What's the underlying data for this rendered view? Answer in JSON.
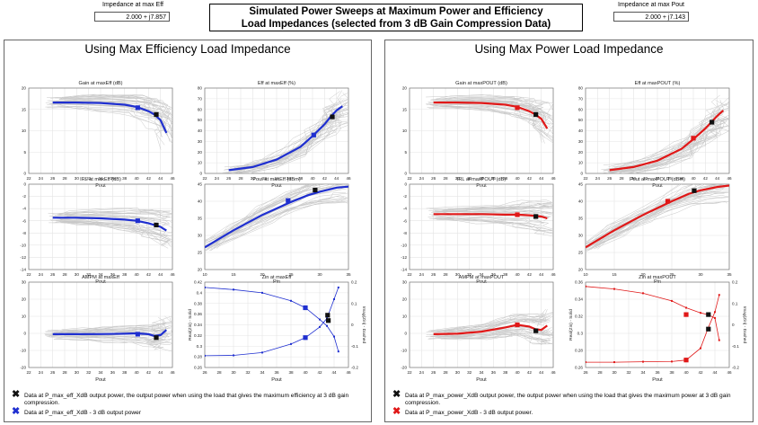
{
  "header": {
    "title_line1": "Simulated Power Sweeps at Maximum Power and Efficiency",
    "title_line2": "Load Impedances (selected from 3 dB Gain Compression Data)",
    "left_impedance_label": "Impedance at max Eff",
    "left_impedance_value": "2.000 + j7.857",
    "right_impedance_label": "Impedance at max Pout",
    "right_impedance_value": "2.000 + j7.143"
  },
  "colors": {
    "eff_series": "#1f2fd0",
    "pout_series": "#e01818",
    "background_curves": "#c8c8c8",
    "marker_black": "#111111"
  },
  "panels": [
    {
      "title": "Using Max Efficiency Load Impedance",
      "accent": "#1f2fd0",
      "legend": [
        {
          "marker": "✖",
          "color": "#111111",
          "text": "Data at P_max_eff_XdB output power, the output power when using the load that gives the maximum efficiency at 3 dB gain compression."
        },
        {
          "marker": "✖",
          "color": "#1f2fd0",
          "text": "Data at P_max_eff_XdB - 3 dB output power"
        }
      ]
    },
    {
      "title": "Using Max Power Load Impedance",
      "accent": "#e01818",
      "legend": [
        {
          "marker": "✖",
          "color": "#111111",
          "text": "Data at P_max_power_XdB output power, the output power when using the load that gives the maximum power at 3 dB gain compression."
        },
        {
          "marker": "✖",
          "color": "#e01818",
          "text": "Data at P_max_power_XdB - 3 dB output power."
        }
      ]
    }
  ],
  "chart_data": [
    {
      "panel": 0,
      "type": "line",
      "title": "Gain at maxEff (dB)",
      "xlabel": "Pout",
      "ylabel": "",
      "xlim": [
        22,
        46
      ],
      "ylim": [
        0,
        20
      ],
      "xticks": [
        22,
        24,
        26,
        28,
        30,
        32,
        34,
        36,
        38,
        40,
        42,
        44,
        46
      ],
      "yticks": [
        0,
        5,
        10,
        15,
        20
      ],
      "x": [
        26,
        30,
        34,
        38,
        40,
        42,
        43,
        44,
        45
      ],
      "y": [
        16.6,
        16.6,
        16.5,
        16.1,
        15.6,
        14.6,
        13.8,
        12.5,
        9.5
      ],
      "markers": [
        {
          "x": 40.2,
          "y": 15.4,
          "color": "accent"
        },
        {
          "x": 43.3,
          "y": 13.8,
          "color": "black"
        }
      ]
    },
    {
      "panel": 0,
      "type": "line",
      "title": "Eff at maxEff (%)",
      "xlabel": "Pout",
      "ylabel": "",
      "xlim": [
        22,
        46
      ],
      "ylim": [
        0,
        80
      ],
      "xticks": [
        22,
        24,
        26,
        28,
        30,
        32,
        34,
        36,
        38,
        40,
        42,
        44,
        46
      ],
      "yticks": [
        0,
        10,
        20,
        30,
        40,
        50,
        60,
        70,
        80
      ],
      "x": [
        26,
        30,
        34,
        38,
        40,
        42,
        43,
        44,
        45
      ],
      "y": [
        3,
        6,
        13,
        25,
        35,
        46,
        53,
        59,
        63
      ],
      "markers": [
        {
          "x": 40.2,
          "y": 36,
          "color": "accent"
        },
        {
          "x": 43.3,
          "y": 53,
          "color": "black"
        }
      ]
    },
    {
      "panel": 0,
      "type": "line",
      "title": "IRL at maxEff (dB)",
      "xlabel": "Pout",
      "ylabel": "",
      "xlim": [
        22,
        46
      ],
      "ylim": [
        -14,
        0
      ],
      "xticks": [
        22,
        24,
        26,
        28,
        30,
        32,
        34,
        36,
        38,
        40,
        42,
        44,
        46
      ],
      "yticks": [
        0,
        -2,
        -4,
        -6,
        -8,
        -10,
        -12,
        -14
      ],
      "x": [
        26,
        30,
        34,
        38,
        40,
        42,
        44,
        45
      ],
      "y": [
        -5.5,
        -5.5,
        -5.6,
        -5.8,
        -6.0,
        -6.4,
        -7.0,
        -7.6
      ],
      "markers": [
        {
          "x": 40.2,
          "y": -6.0,
          "color": "accent"
        },
        {
          "x": 43.3,
          "y": -6.7,
          "color": "black"
        }
      ]
    },
    {
      "panel": 0,
      "type": "line",
      "title": "Pout at maxEff (dBm)",
      "xlabel": "Pin",
      "ylabel": "",
      "xlim": [
        10,
        35
      ],
      "ylim": [
        20,
        45
      ],
      "xticks": [
        10,
        15,
        20,
        25,
        30,
        35
      ],
      "yticks": [
        20,
        25,
        30,
        35,
        40,
        45
      ],
      "x": [
        10,
        15,
        20,
        25,
        28,
        30,
        33,
        35
      ],
      "y": [
        26.5,
        31.5,
        36,
        39.8,
        41.8,
        42.8,
        44,
        44.3
      ],
      "markers": [
        {
          "x": 24.5,
          "y": 40.2,
          "color": "accent"
        },
        {
          "x": 29.2,
          "y": 43.3,
          "color": "black"
        }
      ]
    },
    {
      "panel": 0,
      "type": "line",
      "title": "AMPM at maxEff",
      "xlabel": "Pout",
      "ylabel": "",
      "xlim": [
        22,
        46
      ],
      "ylim": [
        -20,
        30
      ],
      "xticks": [
        22,
        24,
        26,
        28,
        30,
        32,
        34,
        36,
        38,
        40,
        42,
        44,
        46
      ],
      "yticks": [
        30,
        20,
        10,
        0,
        -10,
        -20
      ],
      "x": [
        26,
        30,
        34,
        38,
        40,
        42,
        43,
        44,
        45
      ],
      "y": [
        -0.5,
        -0.5,
        -0.4,
        -0.2,
        0,
        -0.5,
        -1.5,
        -1.0,
        2.0
      ],
      "markers": [
        {
          "x": 40.2,
          "y": -0.5,
          "color": "accent"
        },
        {
          "x": 43.3,
          "y": -2.5,
          "color": "black"
        }
      ]
    },
    {
      "panel": 0,
      "type": "line",
      "title": "Zin at maxEff",
      "xlabel": "Pout",
      "ylabel": "Real(Zin) - Solid",
      "y2label": "Imag(Zin) - Dashed",
      "xlim": [
        26,
        46
      ],
      "ylim": [
        0.26,
        0.42
      ],
      "y2lim": [
        -0.2,
        0.2
      ],
      "xticks": [
        26,
        28,
        30,
        32,
        34,
        36,
        38,
        40,
        42,
        44,
        46
      ],
      "yticks": [
        0.26,
        0.28,
        0.3,
        0.32,
        0.34,
        0.36,
        0.38,
        0.4,
        0.42
      ],
      "y2ticks": [
        -0.2,
        -0.1,
        0,
        0.1,
        0.2
      ],
      "series": [
        {
          "name": "",
          "axis": "y",
          "x": [
            26,
            30,
            34,
            38,
            40,
            42,
            43,
            44,
            44.6
          ],
          "y": [
            0.41,
            0.406,
            0.4,
            0.385,
            0.372,
            0.35,
            0.338,
            0.318,
            0.29
          ]
        },
        {
          "name": "",
          "axis": "y2",
          "x": [
            26,
            30,
            34,
            38,
            40,
            42,
            43,
            44,
            44.6
          ],
          "y": [
            -0.145,
            -0.143,
            -0.13,
            -0.09,
            -0.06,
            -0.01,
            0.03,
            0.12,
            0.175
          ]
        }
      ],
      "markers": [
        {
          "x": 40.0,
          "y": 0.372,
          "axis": "y",
          "color": "accent"
        },
        {
          "x": 40.0,
          "y": -0.06,
          "axis": "y2",
          "color": "accent"
        },
        {
          "x": 43.1,
          "y": 0.358,
          "axis": "y",
          "color": "black"
        },
        {
          "x": 43.2,
          "y": 0.02,
          "axis": "y2",
          "color": "black"
        }
      ]
    },
    {
      "panel": 1,
      "type": "line",
      "title": "Gain at maxPOUT (dB)",
      "xlabel": "Pout",
      "ylabel": "",
      "xlim": [
        22,
        46
      ],
      "ylim": [
        0,
        20
      ],
      "xticks": [
        22,
        24,
        26,
        28,
        30,
        32,
        34,
        36,
        38,
        40,
        42,
        44,
        46
      ],
      "yticks": [
        0,
        5,
        10,
        15,
        20
      ],
      "x": [
        26,
        30,
        34,
        38,
        40,
        42,
        43,
        44,
        45
      ],
      "y": [
        16.6,
        16.6,
        16.5,
        16.1,
        15.6,
        14.6,
        13.8,
        12.8,
        10.5
      ],
      "markers": [
        {
          "x": 40.0,
          "y": 15.4,
          "color": "accent"
        },
        {
          "x": 43.1,
          "y": 13.8,
          "color": "black"
        }
      ]
    },
    {
      "panel": 1,
      "type": "line",
      "title": "Eff at maxPOUT (%)",
      "xlabel": "Pout",
      "ylabel": "",
      "xlim": [
        22,
        46
      ],
      "ylim": [
        0,
        80
      ],
      "xticks": [
        22,
        24,
        26,
        28,
        30,
        32,
        34,
        36,
        38,
        40,
        42,
        44,
        46
      ],
      "yticks": [
        0,
        10,
        20,
        30,
        40,
        50,
        60,
        70,
        80
      ],
      "x": [
        26,
        30,
        34,
        38,
        40,
        42,
        43,
        44,
        45
      ],
      "y": [
        3,
        6,
        12,
        23,
        32,
        42,
        48,
        54,
        59
      ],
      "markers": [
        {
          "x": 40.0,
          "y": 33,
          "color": "accent"
        },
        {
          "x": 43.1,
          "y": 48,
          "color": "black"
        }
      ]
    },
    {
      "panel": 1,
      "type": "line",
      "title": "IRL at maxPOUT (dB)",
      "xlabel": "Pout",
      "ylabel": "",
      "xlim": [
        22,
        46
      ],
      "ylim": [
        -14,
        0
      ],
      "xticks": [
        22,
        24,
        26,
        28,
        30,
        32,
        34,
        36,
        38,
        40,
        42,
        44,
        46
      ],
      "yticks": [
        0,
        -2,
        -4,
        -6,
        -8,
        -10,
        -12,
        -14
      ],
      "x": [
        26,
        30,
        34,
        38,
        40,
        42,
        44,
        45
      ],
      "y": [
        -4.9,
        -4.9,
        -4.9,
        -5.0,
        -5.0,
        -5.1,
        -5.3,
        -5.6
      ],
      "markers": [
        {
          "x": 40.0,
          "y": -5.0,
          "color": "accent"
        },
        {
          "x": 43.1,
          "y": -5.3,
          "color": "black"
        }
      ]
    },
    {
      "panel": 1,
      "type": "line",
      "title": "Pout at maxPOUT (dBm)",
      "xlabel": "Pin",
      "ylabel": "",
      "xlim": [
        10,
        35
      ],
      "ylim": [
        20,
        45
      ],
      "xticks": [
        10,
        15,
        20,
        25,
        30,
        35
      ],
      "yticks": [
        20,
        25,
        30,
        35,
        40,
        45
      ],
      "x": [
        10,
        15,
        20,
        25,
        28,
        30,
        33,
        35
      ],
      "y": [
        26.5,
        31.5,
        36,
        40,
        42.2,
        43.2,
        44.2,
        44.6
      ],
      "markers": [
        {
          "x": 24.3,
          "y": 40.0,
          "color": "accent"
        },
        {
          "x": 28.9,
          "y": 43.1,
          "color": "black"
        }
      ]
    },
    {
      "panel": 1,
      "type": "line",
      "title": "AMPM at maxPOUT",
      "xlabel": "Pout",
      "ylabel": "",
      "xlim": [
        22,
        46
      ],
      "ylim": [
        -20,
        30
      ],
      "xticks": [
        22,
        24,
        26,
        28,
        30,
        32,
        34,
        36,
        38,
        40,
        42,
        44,
        46
      ],
      "yticks": [
        30,
        20,
        10,
        0,
        -10,
        -20
      ],
      "x": [
        26,
        30,
        34,
        38,
        40,
        42,
        43,
        44,
        45
      ],
      "y": [
        -0.5,
        -0.2,
        1.0,
        3.5,
        5.0,
        4.0,
        2.5,
        2.0,
        4.5
      ],
      "markers": [
        {
          "x": 40.0,
          "y": 5.0,
          "color": "accent"
        },
        {
          "x": 43.1,
          "y": 1.5,
          "color": "black"
        }
      ]
    },
    {
      "panel": 1,
      "type": "line",
      "title": "Zin at maxPOUT",
      "xlabel": "Pout",
      "ylabel": "Real(Zin) - Solid",
      "y2label": "Imag(Zin) - Dashed",
      "xlim": [
        26,
        46
      ],
      "ylim": [
        0.26,
        0.36
      ],
      "y2lim": [
        -0.2,
        0.2
      ],
      "xticks": [
        26,
        28,
        30,
        32,
        34,
        36,
        38,
        40,
        42,
        44,
        46
      ],
      "yticks": [
        0.26,
        0.28,
        0.3,
        0.32,
        0.34,
        0.36
      ],
      "y2ticks": [
        -0.2,
        -0.1,
        0,
        0.1,
        0.2
      ],
      "series": [
        {
          "name": "",
          "axis": "y",
          "x": [
            26,
            30,
            34,
            38,
            40,
            42,
            43,
            44,
            44.6
          ],
          "y": [
            0.355,
            0.352,
            0.347,
            0.338,
            0.33,
            0.324,
            0.322,
            0.318,
            0.292
          ]
        },
        {
          "name": "",
          "axis": "y2",
          "x": [
            26,
            30,
            34,
            38,
            40,
            42,
            43,
            44,
            44.6
          ],
          "y": [
            -0.175,
            -0.175,
            -0.173,
            -0.172,
            -0.165,
            -0.11,
            -0.02,
            0.06,
            0.14
          ]
        }
      ],
      "markers": [
        {
          "x": 40.0,
          "y": 0.322,
          "axis": "y",
          "color": "accent"
        },
        {
          "x": 40.0,
          "y": -0.165,
          "axis": "y2",
          "color": "accent"
        },
        {
          "x": 43.1,
          "y": 0.322,
          "axis": "y",
          "color": "black"
        },
        {
          "x": 43.1,
          "y": -0.02,
          "axis": "y2",
          "color": "black"
        }
      ]
    }
  ]
}
